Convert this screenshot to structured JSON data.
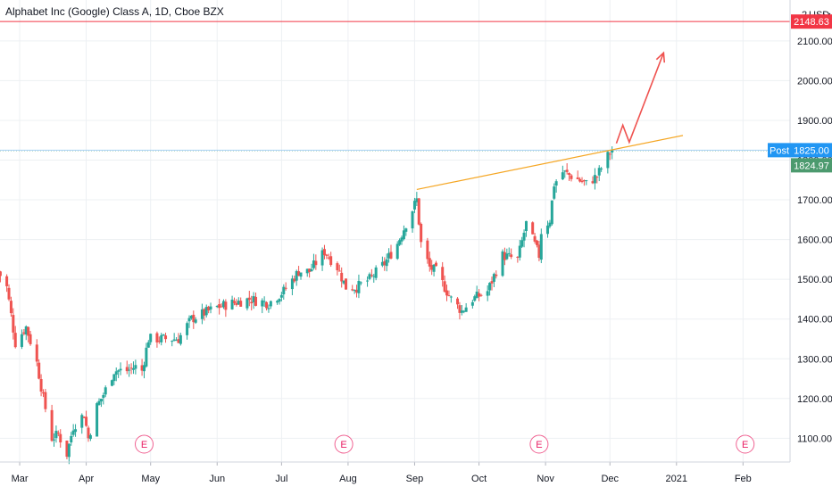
{
  "header": {
    "title": "Alphabet Inc (Google) Class A, 1D, Cboe BZX"
  },
  "colors": {
    "up": "#26a69a",
    "down": "#ef5350",
    "trendline": "#f5a623",
    "arrow": "#ef5350",
    "resistance": "#f23645",
    "post_tag": "#2196f3",
    "last_tag": "#4c9a6e",
    "grid": "#edf0f3",
    "axis_text": "#131722"
  },
  "chart_data": {
    "type": "candlestick",
    "title": "Alphabet Inc (Google) Class A, 1D, Cboe BZX",
    "ylim": [
      1070,
      2170
    ],
    "y_unit_label": "USD",
    "y_top_label": "2",
    "y_ticks": [
      1100,
      1200,
      1300,
      1400,
      1500,
      1600,
      1700,
      1800,
      1900,
      2000,
      2100
    ],
    "y_tick_labels": [
      "1100.00",
      "1200.00",
      "1300.00",
      "1400.00",
      "1500.00",
      "1600.00",
      "1700.00",
      "1800.00",
      "1900.00",
      "2000.00",
      "2100.00"
    ],
    "x_months": [
      "Mar",
      "Apr",
      "May",
      "Jun",
      "Jul",
      "Aug",
      "Sep",
      "Oct",
      "Nov",
      "Dec",
      "2021",
      "Feb"
    ],
    "x_month_dates": [
      "2020-03-01",
      "2020-04-01",
      "2020-05-01",
      "2020-06-01",
      "2020-07-01",
      "2020-08-01",
      "2020-09-01",
      "2020-10-01",
      "2020-11-01",
      "2020-12-01",
      "2021-01-01",
      "2021-02-01"
    ],
    "xlim": [
      "2020-02-20",
      "2021-02-20"
    ],
    "earnings_markers": [
      {
        "date": "2020-04-28",
        "label": "E"
      },
      {
        "date": "2020-07-30",
        "label": "E"
      },
      {
        "date": "2020-10-29",
        "label": "E"
      },
      {
        "date": "2021-02-02",
        "label": "E"
      }
    ],
    "resistance_line": {
      "value": 2148.63,
      "label": "2148.63"
    },
    "post_price": {
      "value": 1825.0,
      "label": "1825.00",
      "tag": "Post"
    },
    "last_price": {
      "value": 1824.97,
      "label": "1824.97"
    },
    "trendline": {
      "start": {
        "date": "2020-09-02",
        "value": 1726
      },
      "end": {
        "date": "2021-01-04",
        "value": 1862
      }
    },
    "projection_arrow": [
      {
        "date": "2020-12-04",
        "value": 1842
      },
      {
        "date": "2020-12-07",
        "value": 1888
      },
      {
        "date": "2020-12-10",
        "value": 1845
      },
      {
        "date": "2020-12-26",
        "value": 2070
      }
    ],
    "anchors": [
      [
        "2020-02-20",
        1520
      ],
      [
        "2020-02-24",
        1480
      ],
      [
        "2020-02-28",
        1340
      ],
      [
        "2020-03-04",
        1380
      ],
      [
        "2020-03-09",
        1290
      ],
      [
        "2020-03-12",
        1200
      ],
      [
        "2020-03-16",
        1100
      ],
      [
        "2020-03-19",
        1110
      ],
      [
        "2020-03-23",
        1060
      ],
      [
        "2020-03-26",
        1130
      ],
      [
        "2020-03-31",
        1160
      ],
      [
        "2020-04-02",
        1100
      ],
      [
        "2020-04-06",
        1180
      ],
      [
        "2020-04-09",
        1210
      ],
      [
        "2020-04-14",
        1270
      ],
      [
        "2020-04-20",
        1270
      ],
      [
        "2020-04-24",
        1280
      ],
      [
        "2020-04-27",
        1270
      ],
      [
        "2020-04-30",
        1350
      ],
      [
        "2020-05-05",
        1350
      ],
      [
        "2020-05-14",
        1350
      ],
      [
        "2020-05-20",
        1400
      ],
      [
        "2020-06-01",
        1430
      ],
      [
        "2020-06-08",
        1440
      ],
      [
        "2020-06-16",
        1450
      ],
      [
        "2020-06-25",
        1440
      ],
      [
        "2020-07-02",
        1470
      ],
      [
        "2020-07-09",
        1520
      ],
      [
        "2020-07-14",
        1520
      ],
      [
        "2020-07-21",
        1570
      ],
      [
        "2020-07-27",
        1530
      ],
      [
        "2020-07-31",
        1480
      ],
      [
        "2020-08-05",
        1480
      ],
      [
        "2020-08-11",
        1500
      ],
      [
        "2020-08-18",
        1540
      ],
      [
        "2020-08-24",
        1590
      ],
      [
        "2020-08-28",
        1640
      ],
      [
        "2020-09-02",
        1700
      ],
      [
        "2020-09-04",
        1590
      ],
      [
        "2020-09-08",
        1530
      ],
      [
        "2020-09-11",
        1520
      ],
      [
        "2020-09-18",
        1450
      ],
      [
        "2020-09-23",
        1420
      ],
      [
        "2020-09-28",
        1450
      ],
      [
        "2020-10-05",
        1470
      ],
      [
        "2020-10-12",
        1560
      ],
      [
        "2020-10-19",
        1550
      ],
      [
        "2020-10-23",
        1640
      ],
      [
        "2020-10-29",
        1560
      ],
      [
        "2020-10-30",
        1620
      ],
      [
        "2020-11-03",
        1650
      ],
      [
        "2020-11-05",
        1740
      ],
      [
        "2020-11-09",
        1770
      ],
      [
        "2020-11-13",
        1760
      ],
      [
        "2020-11-20",
        1740
      ],
      [
        "2020-11-25",
        1760
      ],
      [
        "2020-12-01",
        1820
      ],
      [
        "2020-12-02",
        1825
      ]
    ]
  }
}
